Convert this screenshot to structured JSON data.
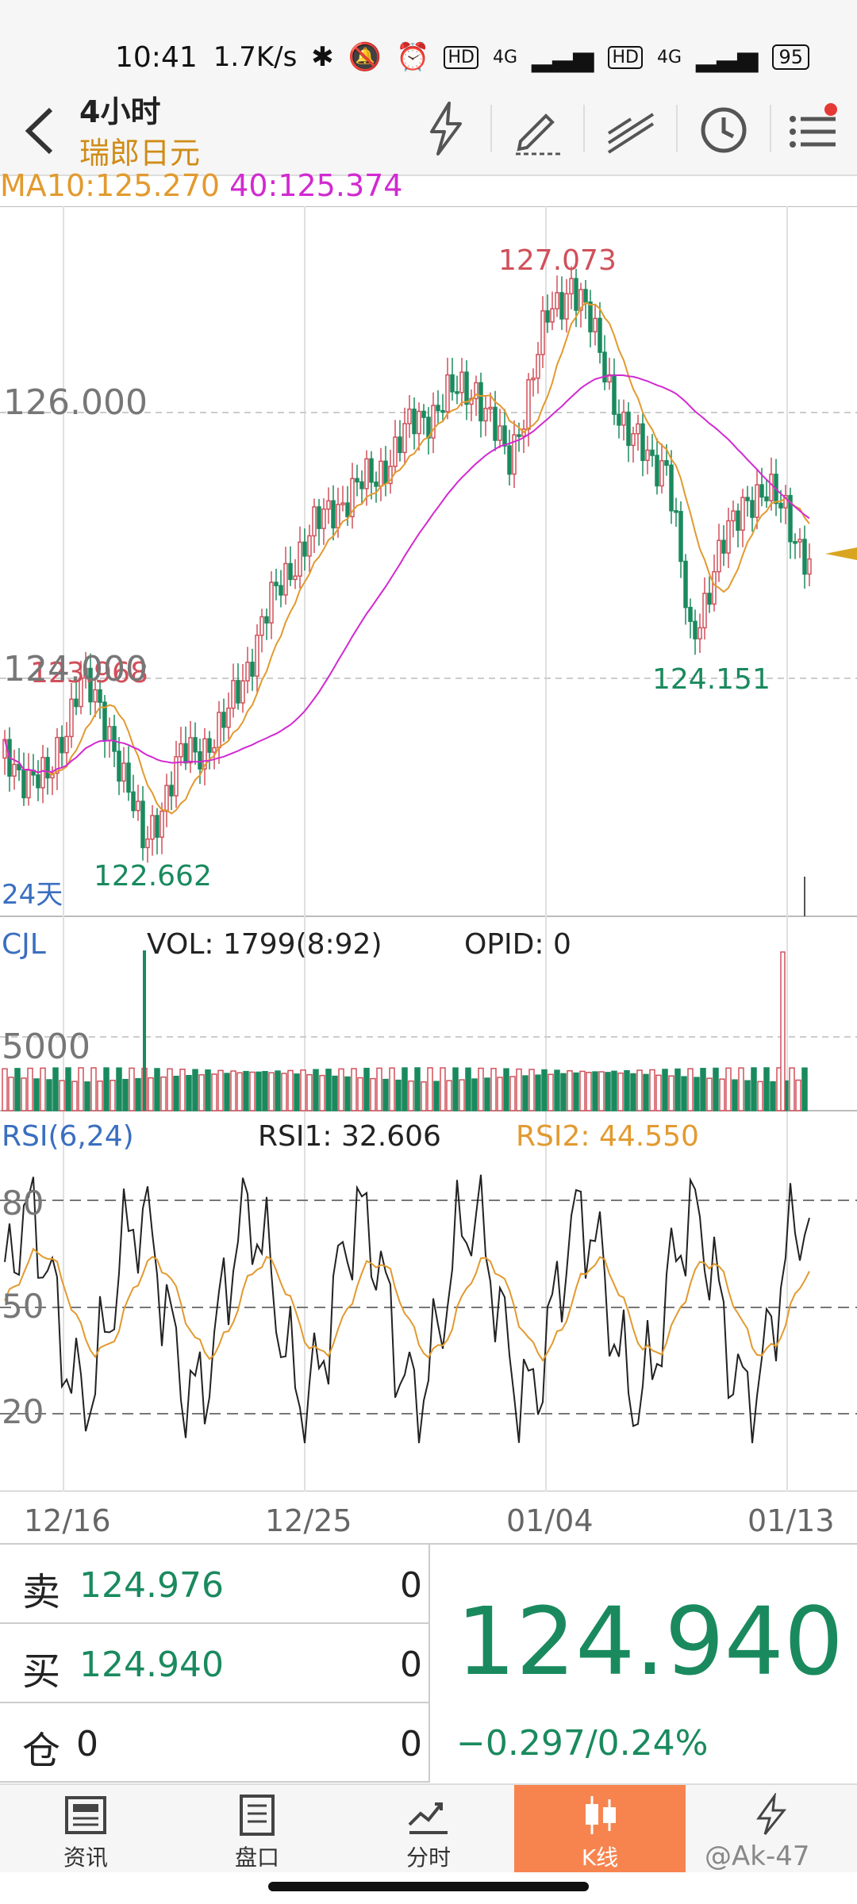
{
  "status": {
    "time": "10:41",
    "speed": "1.7K/s",
    "net1": "4G",
    "net2": "4G",
    "battery": "95"
  },
  "header": {
    "period": "4小时",
    "symbol": "瑞郎日元"
  },
  "ma": {
    "ma10": "MA10:125.270",
    "ma40": "40:125.374"
  },
  "main_chart": {
    "labels": {
      "high": "127.073",
      "low": "122.662",
      "local_high": "123.968",
      "local_low": "124.151",
      "period_tag": "24天"
    },
    "ticks": [
      "126.000",
      "124.000"
    ]
  },
  "volume": {
    "title": "CJL",
    "vol": "VOL: 1799(8:92)",
    "opid": "OPID: 0",
    "tick": "5000"
  },
  "rsi": {
    "title": "RSI(6,24)",
    "rsi1": "RSI1: 32.606",
    "rsi2": "RSI2: 44.550",
    "ticks": [
      "80",
      "50",
      "20"
    ]
  },
  "dates": [
    "12/16",
    "12/25",
    "01/04",
    "01/13"
  ],
  "quote": {
    "sell_label": "卖",
    "sell_price": "124.976",
    "sell_qty": "0",
    "buy_label": "买",
    "buy_price": "124.940",
    "buy_qty": "0",
    "pos_label": "仓",
    "pos_val": "0",
    "pos_qty": "0",
    "last": "124.940",
    "change": "−0.297/0.24%"
  },
  "tabs": [
    {
      "label": "资讯"
    },
    {
      "label": "盘口"
    },
    {
      "label": "分时"
    },
    {
      "label": "K线"
    },
    {
      "label": ""
    }
  ],
  "watermark": "@Ak-47",
  "colors": {
    "up": "#d0505a",
    "down": "#1a8a5e",
    "ma10": "#e29a2f",
    "ma40": "#d12ad1",
    "accent": "#f7844f"
  },
  "chart_data": {
    "type": "candlestick",
    "x": [
      "12/16",
      "12/25",
      "01/04",
      "01/13"
    ],
    "y_ticks": [
      126.0,
      124.0
    ],
    "high": 127.073,
    "low": 122.662,
    "last": 124.94,
    "ma10": 125.27,
    "ma40": 125.374
  }
}
